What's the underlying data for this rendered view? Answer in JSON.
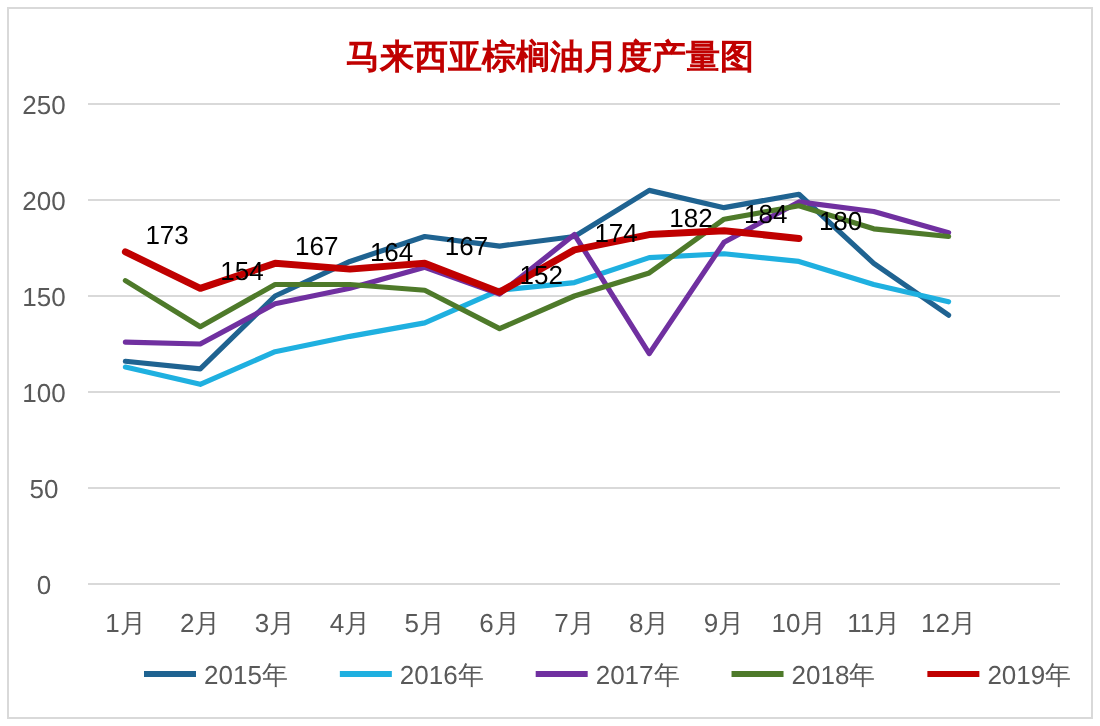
{
  "chart_data": {
    "type": "line",
    "title": "马来西亚棕榈油月度产量图",
    "categories": [
      "1月",
      "2月",
      "3月",
      "4月",
      "5月",
      "6月",
      "7月",
      "8月",
      "9月",
      "10月",
      "11月",
      "12月"
    ],
    "ylim": [
      0,
      250
    ],
    "yticks": [
      0,
      50,
      100,
      150,
      200,
      250
    ],
    "grid": "y",
    "legend": "bottom",
    "marker": "none",
    "series": [
      {
        "name": "2015年",
        "color": "#1f6391",
        "values": [
          116,
          112,
          150,
          168,
          181,
          176,
          181,
          205,
          196,
          203,
          167,
          140
        ]
      },
      {
        "name": "2016年",
        "color": "#1fb0e0",
        "values": [
          113,
          104,
          121,
          129,
          136,
          153,
          157,
          170,
          172,
          168,
          156,
          147
        ]
      },
      {
        "name": "2017年",
        "color": "#7030a0",
        "values": [
          126,
          125,
          146,
          154,
          165,
          151,
          182,
          120,
          178,
          199,
          194,
          183
        ]
      },
      {
        "name": "2018年",
        "color": "#4e7a2a",
        "values": [
          158,
          134,
          156,
          156,
          153,
          133,
          150,
          162,
          190,
          197,
          185,
          181
        ]
      },
      {
        "name": "2019年",
        "color": "#c00000",
        "values": [
          173,
          154,
          167,
          164,
          167,
          152,
          174,
          182,
          184,
          180,
          null,
          null
        ],
        "value_labels": [
          "173",
          "154",
          "167",
          "164",
          "167",
          "152",
          "174",
          "182",
          "184",
          "180",
          null,
          null
        ]
      }
    ]
  }
}
